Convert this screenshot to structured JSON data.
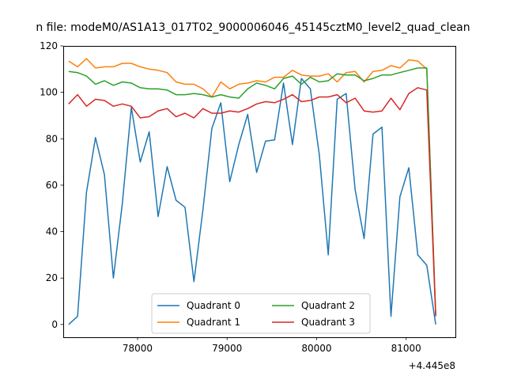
{
  "chart_data": {
    "type": "line",
    "title": "n file: modeM0/AS1A13_017T02_9000006046_45145cztM0_level2_quad_clean",
    "xlabel": "",
    "ylabel": "",
    "x_offset_label": "+4.445e8",
    "xlim": [
      444477170,
      444481550
    ],
    "ylim": [
      -5.5,
      120
    ],
    "x_ticks": [
      444478000,
      444479000,
      444480000,
      444481000
    ],
    "x_tick_labels": [
      "78000",
      "79000",
      "80000",
      "81000"
    ],
    "y_ticks": [
      0,
      20,
      40,
      60,
      80,
      100,
      120
    ],
    "y_tick_labels": [
      "0",
      "20",
      "40",
      "60",
      "80",
      "100",
      "120"
    ],
    "grid": false,
    "legend": {
      "placement": "lower-center",
      "columns": 2
    },
    "x": [
      444477230,
      444477330,
      444477430,
      444477530,
      444477630,
      444477730,
      444477830,
      444477930,
      444478030,
      444478130,
      444478230,
      444478330,
      444478430,
      444478530,
      444478630,
      444478730,
      444478830,
      444478930,
      444479030,
      444479130,
      444479230,
      444479330,
      444479430,
      444479530,
      444479630,
      444479730,
      444479830,
      444479930,
      444480030,
      444480130,
      444480230,
      444480330,
      444480430,
      444480530,
      444480630,
      444480730,
      444480830,
      444480930,
      444481030,
      444481130,
      444481230,
      444481330
    ],
    "series": [
      {
        "name": "Quadrant 0",
        "color": "#1f77b4",
        "values": [
          0,
          3.5,
          57,
          80.5,
          64.5,
          20,
          52,
          93.5,
          70,
          83,
          46.5,
          68,
          53.5,
          50.5,
          18.5,
          49.5,
          84.5,
          95.5,
          61.5,
          77.5,
          90.5,
          65.5,
          79,
          79.5,
          104,
          77.5,
          106,
          101.5,
          73,
          30,
          97,
          99.5,
          58,
          37,
          82,
          85,
          3.5,
          55,
          67.5,
          30,
          25.5,
          0
        ]
      },
      {
        "name": "Quadrant 1",
        "color": "#ff7f0e",
        "values": [
          113.5,
          111,
          114.5,
          110.5,
          111,
          111,
          112.5,
          112.5,
          111,
          110,
          109.5,
          108.5,
          104.5,
          103.5,
          103.5,
          101.5,
          98,
          104.5,
          101.5,
          103.5,
          104,
          105,
          104.5,
          106.5,
          106.5,
          109.5,
          107.5,
          107,
          107,
          108,
          104.5,
          108.5,
          109,
          104.5,
          109,
          109.5,
          111.5,
          110.5,
          114,
          113.5,
          110,
          4
        ]
      },
      {
        "name": "Quadrant 2",
        "color": "#2ca02c",
        "values": [
          109,
          108.5,
          107,
          103.5,
          105,
          103,
          104.5,
          104,
          102,
          101.5,
          101.5,
          101,
          99,
          99,
          99.5,
          99,
          98,
          99,
          98,
          97.5,
          101.5,
          104,
          103,
          101.5,
          106,
          107,
          103.5,
          106.5,
          104.5,
          105,
          108,
          107.5,
          107.5,
          105,
          106,
          107.5,
          107.5,
          108.5,
          109.5,
          110.5,
          110.5,
          4
        ]
      },
      {
        "name": "Quadrant 3",
        "color": "#d62728",
        "values": [
          95,
          99,
          94,
          97,
          96.5,
          94,
          95,
          94,
          89,
          89.5,
          92,
          93,
          89.5,
          91,
          89,
          93,
          91,
          91,
          92,
          91.5,
          93,
          95,
          96,
          95.5,
          97,
          99,
          96,
          96.5,
          98,
          98,
          99,
          95.5,
          97.5,
          92,
          91.5,
          92,
          97.5,
          92.5,
          99.5,
          102,
          101,
          3.5
        ]
      }
    ]
  }
}
